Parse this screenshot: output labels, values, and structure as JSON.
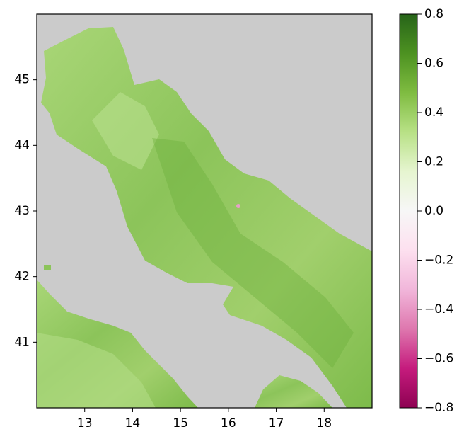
{
  "chart_data": {
    "type": "raster-map",
    "xlim": [
      12,
      19
    ],
    "xticks": [
      13,
      14,
      15,
      16,
      17,
      18
    ],
    "ylim": [
      40,
      46
    ],
    "yticks": [
      41,
      42,
      43,
      44,
      45
    ],
    "colorbar": {
      "lim": [
        -0.8,
        0.8
      ],
      "ticks": [
        {
          "value": -0.8,
          "label": "−0.8"
        },
        {
          "value": -0.6,
          "label": "−0.6"
        },
        {
          "value": -0.4,
          "label": "−0.4"
        },
        {
          "value": -0.2,
          "label": "−0.2"
        },
        {
          "value": 0,
          "label": "0.0"
        },
        0.2,
        0.4,
        0.6,
        0.8
      ],
      "colors": [
        "#8e0152",
        "#c51b7d",
        "#de77ae",
        "#f1b6da",
        "#fde0ef",
        "#f7f7f7",
        "#e6f5d0",
        "#b8e186",
        "#7fbc41",
        "#4d9221",
        "#276419"
      ]
    }
  }
}
